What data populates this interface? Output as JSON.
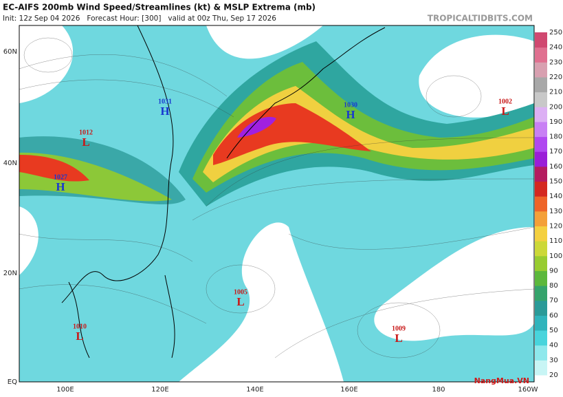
{
  "header": {
    "title": "EC-AIFS 200mb Wind Speed/Streamlines (kt) & MSLP Extrema (mb)",
    "subtitle": "Init: 12z Sep 04 2026   Forecast Hour: [300]   valid at 00z Thu, Sep 17 2026",
    "site": "TROPICALTIDBITS.COM"
  },
  "map": {
    "lat_labels": [
      "60N",
      "40N",
      "20N",
      "EQ"
    ],
    "lon_labels": [
      "100E",
      "120E",
      "140E",
      "160E",
      "180",
      "160W"
    ],
    "extrema": [
      {
        "letter": "H",
        "value": "1031"
      },
      {
        "letter": "L",
        "value": "1012"
      },
      {
        "letter": "H",
        "value": "1027"
      },
      {
        "letter": "H",
        "value": "1030"
      },
      {
        "letter": "L",
        "value": "1002"
      },
      {
        "letter": "L",
        "value": "1005"
      },
      {
        "letter": "L",
        "value": "1010"
      },
      {
        "letter": "L",
        "value": "1009"
      }
    ]
  },
  "colorbar": {
    "ticks": [
      20,
      30,
      40,
      50,
      60,
      70,
      80,
      90,
      100,
      110,
      120,
      130,
      140,
      150,
      160,
      170,
      180,
      190,
      200,
      210,
      220,
      230,
      240,
      250
    ],
    "colors": [
      "#c8f5f5",
      "#8ee8ec",
      "#48d4dc",
      "#30b4bc",
      "#2a9a98",
      "#35a46c",
      "#5cb83c",
      "#98cc30",
      "#ccd838",
      "#f4d040",
      "#f4a038",
      "#ee6428",
      "#d42820",
      "#b41c60",
      "#9a1ed8",
      "#b048f0",
      "#c880f4",
      "#dcb0f4",
      "#c8c8c8",
      "#a8a8a8",
      "#d8a0b0",
      "#e07090",
      "#d04870"
    ]
  },
  "watermark": "NangMua.VN"
}
